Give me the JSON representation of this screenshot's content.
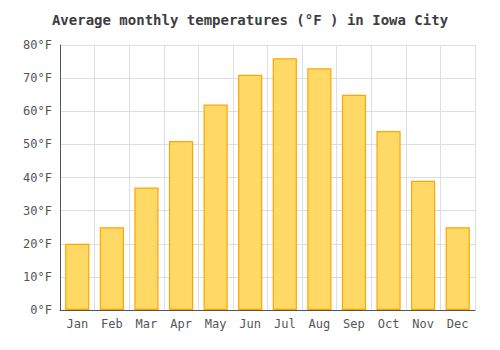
{
  "chart_data": {
    "type": "bar",
    "title": "Average monthly temperatures (°F ) in Iowa City",
    "categories": [
      "Jan",
      "Feb",
      "Mar",
      "Apr",
      "May",
      "Jun",
      "Jul",
      "Aug",
      "Sep",
      "Oct",
      "Nov",
      "Dec"
    ],
    "values": [
      20,
      25,
      37,
      51,
      62,
      71,
      76,
      73,
      65,
      54,
      39,
      25
    ],
    "color": "#FFD966",
    "ylim": [
      0,
      80
    ],
    "yticks": [
      {
        "value": 0,
        "label": "0°F"
      },
      {
        "value": 10,
        "label": "10°F"
      },
      {
        "value": 20,
        "label": "20°F"
      },
      {
        "value": 30,
        "label": "30°F"
      },
      {
        "value": 40,
        "label": "40°F"
      },
      {
        "value": 50,
        "label": "50°F"
      },
      {
        "value": 60,
        "label": "60°F"
      },
      {
        "value": 70,
        "label": "70°F"
      },
      {
        "value": 80,
        "label": "80°F"
      }
    ],
    "grid": true
  }
}
